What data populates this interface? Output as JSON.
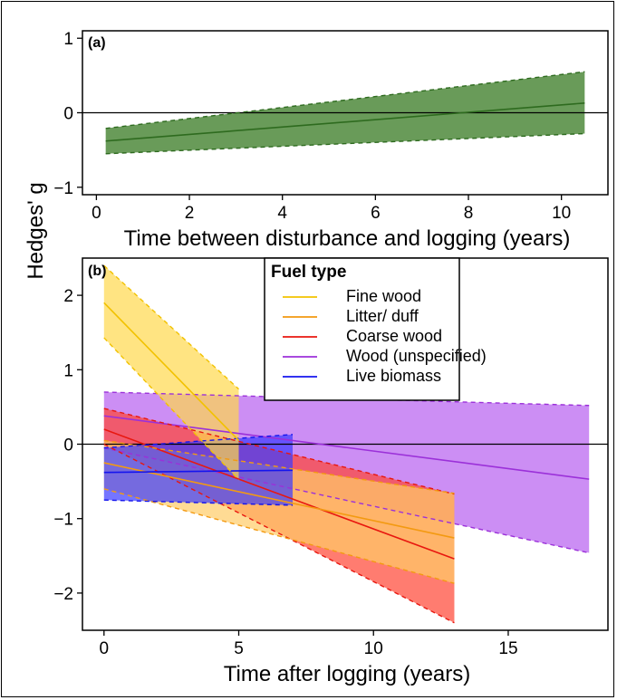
{
  "y_axis_title": "Hedges' g",
  "chart_data": [
    {
      "type": "line",
      "panel_tag": "(a)",
      "xlabel": "Time between disturbance and logging (years)",
      "xlim": [
        -0.3,
        11.0
      ],
      "ylim": [
        -1.1,
        1.1
      ],
      "xticks": [
        0,
        2,
        4,
        6,
        8,
        10
      ],
      "yticks": [
        -1,
        0,
        1
      ],
      "reference_line": 0,
      "series": [
        {
          "color": "#2e6b1f",
          "fill": "#4f8a3c",
          "x": [
            0.2,
            10.5
          ],
          "y": [
            -0.38,
            0.13
          ],
          "lower": [
            -0.55,
            -0.28
          ],
          "upper": [
            -0.21,
            0.55
          ]
        }
      ]
    },
    {
      "type": "line",
      "panel_tag": "(b)",
      "xlabel": "Time after logging (years)",
      "xlim": [
        -0.8,
        18.7
      ],
      "ylim": [
        -2.5,
        2.5
      ],
      "xticks": [
        0,
        5,
        10,
        15
      ],
      "yticks": [
        -2,
        -1,
        0,
        1,
        2
      ],
      "reference_line": 0,
      "legend": {
        "title": "Fuel type",
        "placement": "top-center"
      },
      "series": [
        {
          "name": "Wood (unspecified)",
          "color": "#9b30d9",
          "fill": "#b65ef0",
          "x": [
            0,
            18
          ],
          "y": [
            0.38,
            -0.47
          ],
          "lower": [
            -0.05,
            -1.46
          ],
          "upper": [
            0.7,
            0.52
          ]
        },
        {
          "name": "Coarse wood",
          "color": "#e8170f",
          "fill": "#ff4433",
          "x": [
            0,
            13
          ],
          "y": [
            0.2,
            -1.54
          ],
          "lower": [
            0.0,
            -2.4
          ],
          "upper": [
            0.48,
            -0.67
          ]
        },
        {
          "name": "Litter/ duff",
          "color": "#f39a11",
          "fill": "#ffcc66",
          "x": [
            0,
            13
          ],
          "y": [
            -0.25,
            -1.26
          ],
          "lower": [
            -0.6,
            -1.87
          ],
          "upper": [
            0.05,
            -0.66
          ]
        },
        {
          "name": "Live biomass",
          "color": "#1414ee",
          "fill": "#3a3aff",
          "x": [
            0,
            7
          ],
          "y": [
            -0.38,
            -0.35
          ],
          "lower": [
            -0.75,
            -0.82
          ],
          "upper": [
            -0.05,
            0.13
          ]
        },
        {
          "name": "Fine wood",
          "color": "#f2c200",
          "fill": "#ffd84d",
          "x": [
            0,
            5
          ],
          "y": [
            1.9,
            0.05
          ],
          "lower": [
            1.43,
            -0.48
          ],
          "upper": [
            2.4,
            0.74
          ]
        }
      ],
      "legend_order": [
        "Fine wood",
        "Litter/ duff",
        "Coarse wood",
        "Wood (unspecified)",
        "Live biomass"
      ]
    }
  ]
}
